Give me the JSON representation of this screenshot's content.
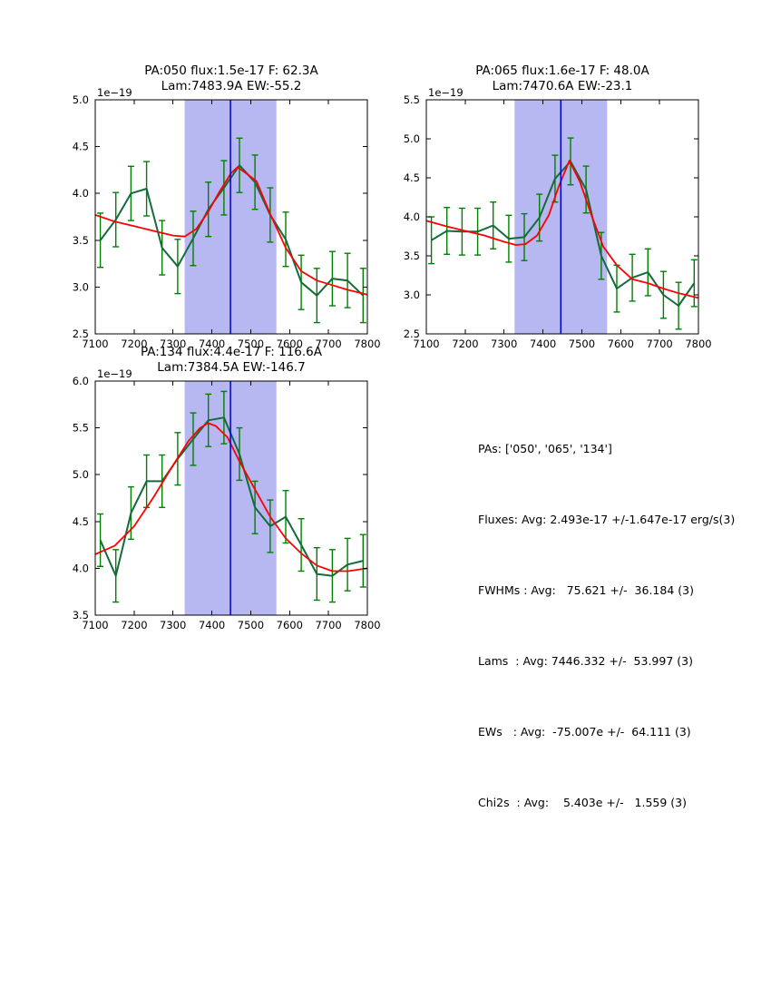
{
  "figure": {
    "background": "#ffffff"
  },
  "colors": {
    "data_line": "#136b3a",
    "error_bar": "#008000",
    "fit_line": "#ff0000",
    "vline": "#0000cc",
    "span_fill": "#b7b7f2",
    "axis": "#000000",
    "text": "#000000"
  },
  "stats_panel": {
    "lines": [
      "PAs: ['050', '065', '134']",
      "Fluxes: Avg: 2.493e-17 +/-1.647e-17 erg/s(3)",
      "FWHMs : Avg:   75.621 +/-  36.184 (3)",
      "Lams  : Avg: 7446.332 +/-  53.997 (3)",
      "EWs   : Avg:  -75.007e +/-  64.111 (3)",
      "Chi2s  : Avg:    5.403e +/-   1.559 (3)"
    ]
  },
  "chart_data": [
    {
      "type": "line",
      "title_line1": "PA:050 flux:1.5e-17 F: 62.3A",
      "title_line2": "Lam:7483.9A EW:-55.2",
      "offset_label": "1e−19",
      "xlim": [
        7100,
        7800
      ],
      "ylim": [
        2.5,
        5.0
      ],
      "xticks": [
        7100,
        7200,
        7300,
        7400,
        7500,
        7600,
        7700,
        7800
      ],
      "yticks": [
        2.5,
        3.0,
        3.5,
        4.0,
        4.5,
        5.0
      ],
      "span": [
        7330,
        7566
      ],
      "vline": 7448,
      "grid": false,
      "legend": null,
      "x": [
        7113,
        7153,
        7192,
        7232,
        7272,
        7312,
        7352,
        7391,
        7431,
        7471,
        7511,
        7550,
        7590,
        7630,
        7670,
        7710,
        7749,
        7789
      ],
      "series": [
        {
          "name": "spectrum",
          "values": [
            3.5,
            3.72,
            4.0,
            4.05,
            3.42,
            3.22,
            3.52,
            3.83,
            4.06,
            4.3,
            4.12,
            3.77,
            3.51,
            3.05,
            2.91,
            3.09,
            3.07,
            2.91
          ],
          "yerr": 0.29
        }
      ],
      "fit": {
        "x": [
          7100,
          7150,
          7200,
          7250,
          7300,
          7330,
          7360,
          7390,
          7420,
          7450,
          7466,
          7490,
          7515,
          7550,
          7590,
          7630,
          7670,
          7710,
          7750,
          7800
        ],
        "y": [
          3.77,
          3.7,
          3.65,
          3.6,
          3.55,
          3.54,
          3.62,
          3.8,
          4.02,
          4.22,
          4.28,
          4.21,
          4.13,
          3.78,
          3.42,
          3.17,
          3.07,
          3.02,
          2.97,
          2.92
        ]
      }
    },
    {
      "type": "line",
      "title_line1": "PA:065 flux:1.6e-17 F: 48.0A",
      "title_line2": "Lam:7470.6A EW:-23.1",
      "offset_label": "1e−19",
      "xlim": [
        7100,
        7800
      ],
      "ylim": [
        2.5,
        5.5
      ],
      "xticks": [
        7100,
        7200,
        7300,
        7400,
        7500,
        7600,
        7700,
        7800
      ],
      "yticks": [
        2.5,
        3.0,
        3.5,
        4.0,
        4.5,
        5.0,
        5.5
      ],
      "span": [
        7327,
        7565
      ],
      "vline": 7446,
      "grid": false,
      "legend": null,
      "x": [
        7113,
        7153,
        7192,
        7232,
        7272,
        7312,
        7352,
        7391,
        7431,
        7471,
        7511,
        7550,
        7590,
        7630,
        7670,
        7710,
        7749,
        7789
      ],
      "series": [
        {
          "name": "spectrum",
          "values": [
            3.7,
            3.82,
            3.81,
            3.81,
            3.89,
            3.72,
            3.74,
            3.99,
            4.49,
            4.71,
            4.35,
            3.5,
            3.08,
            3.22,
            3.29,
            3.0,
            2.86,
            3.15
          ],
          "yerr": 0.3
        }
      ],
      "fit": {
        "x": [
          7100,
          7150,
          7200,
          7250,
          7300,
          7330,
          7355,
          7385,
          7415,
          7440,
          7468,
          7495,
          7525,
          7555,
          7590,
          7630,
          7670,
          7710,
          7750,
          7800
        ],
        "y": [
          3.95,
          3.88,
          3.82,
          3.76,
          3.68,
          3.64,
          3.65,
          3.76,
          4.02,
          4.38,
          4.72,
          4.45,
          4.02,
          3.62,
          3.38,
          3.2,
          3.15,
          3.08,
          3.02,
          2.96
        ]
      }
    },
    {
      "type": "line",
      "title_line1": "PA:134 flux:4.4e-17 F: 116.6A",
      "title_line2": "Lam:7384.5A EW:-146.7",
      "offset_label": "1e−19",
      "xlim": [
        7100,
        7800
      ],
      "ylim": [
        3.5,
        6.0
      ],
      "xticks": [
        7100,
        7200,
        7300,
        7400,
        7500,
        7600,
        7700,
        7800
      ],
      "yticks": [
        3.5,
        4.0,
        4.5,
        5.0,
        5.5,
        6.0
      ],
      "span": [
        7330,
        7566
      ],
      "vline": 7448,
      "grid": false,
      "legend": null,
      "x": [
        7113,
        7153,
        7192,
        7232,
        7272,
        7312,
        7352,
        7391,
        7431,
        7471,
        7511,
        7550,
        7590,
        7630,
        7670,
        7710,
        7749,
        7789
      ],
      "series": [
        {
          "name": "spectrum",
          "values": [
            4.3,
            3.92,
            4.59,
            4.93,
            4.93,
            5.17,
            5.38,
            5.58,
            5.61,
            5.22,
            4.65,
            4.45,
            4.55,
            4.25,
            3.94,
            3.92,
            4.04,
            4.08
          ],
          "yerr": 0.28
        }
      ],
      "fit": {
        "x": [
          7100,
          7150,
          7200,
          7250,
          7300,
          7340,
          7370,
          7390,
          7410,
          7440,
          7470,
          7510,
          7550,
          7590,
          7630,
          7670,
          7710,
          7750,
          7800
        ],
        "y": [
          4.15,
          4.24,
          4.45,
          4.76,
          5.1,
          5.36,
          5.5,
          5.55,
          5.52,
          5.4,
          5.15,
          4.85,
          4.55,
          4.32,
          4.16,
          4.03,
          3.97,
          3.97,
          4.0
        ]
      }
    }
  ]
}
